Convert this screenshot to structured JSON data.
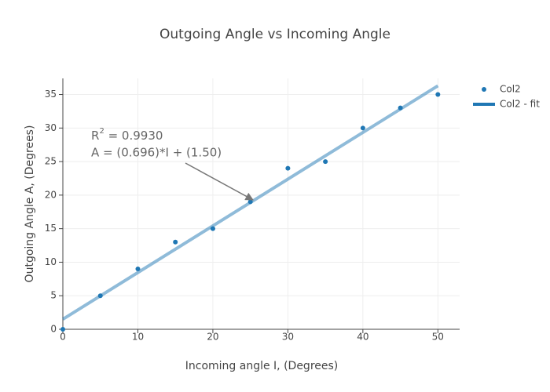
{
  "chart_data": {
    "type": "scatter",
    "title": "Outgoing Angle vs Incoming Angle",
    "x_label": "Incoming angle I, (Degrees)",
    "y_label": "Outgoing Angle A, (Degrees)",
    "series": [
      {
        "name": "Col2",
        "type": "scatter",
        "color": "#1f77b4",
        "x": [
          0,
          5,
          10,
          15,
          20,
          25,
          30,
          35,
          40,
          45,
          50
        ],
        "values": [
          0,
          5,
          9,
          13,
          15,
          19,
          24,
          25,
          30,
          33,
          35
        ]
      },
      {
        "name": "Col2 - fit",
        "type": "line",
        "color": "#1f77b4",
        "x": [
          0,
          50
        ],
        "values": [
          1.5,
          36.3
        ]
      }
    ],
    "annotation": {
      "r_base": "R",
      "r_sup": "2",
      "r_rest": " = 0.9930",
      "equation": "A = (0.696)*I + (1.50)"
    },
    "xlim": [
      0,
      52.9
    ],
    "xticks": [
      0,
      10,
      20,
      30,
      40,
      50
    ],
    "ylim": [
      0,
      37.4
    ],
    "yticks": [
      0,
      5,
      10,
      15,
      20,
      25,
      30,
      35
    ],
    "grid": true,
    "legend": "right"
  }
}
